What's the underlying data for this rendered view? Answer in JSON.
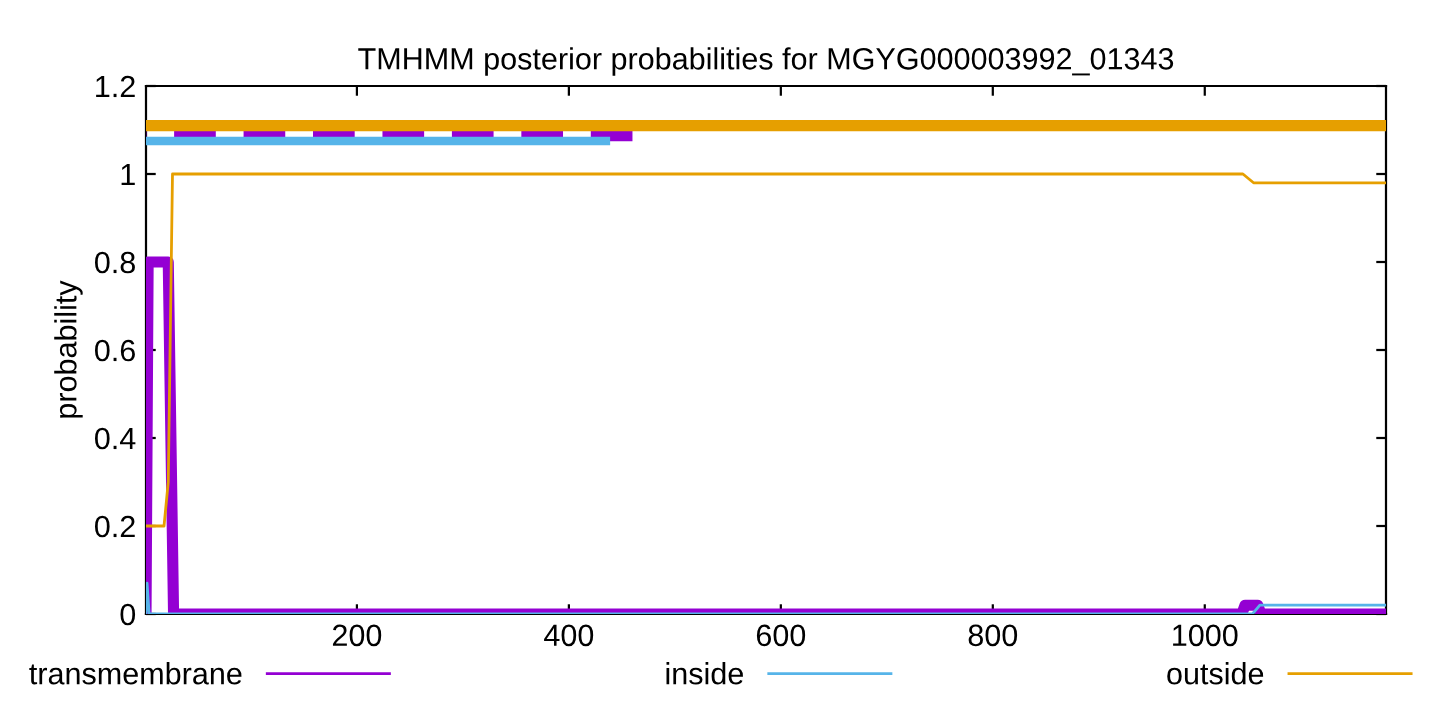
{
  "chart_data": {
    "type": "line",
    "title": "TMHMM posterior probabilities for MGYG000003992_01343",
    "ylabel": "probability",
    "series": [
      {
        "name": "transmembrane",
        "color": "#9400d3",
        "x": [
          1,
          3,
          22,
          27,
          1035,
          1038,
          1050,
          1053,
          1171
        ],
        "values": [
          0,
          0.8,
          0.8,
          0,
          0,
          0.02,
          0.02,
          0,
          0
        ]
      },
      {
        "name": "inside",
        "color": "#56b4e9",
        "x": [
          1,
          2,
          4,
          1045,
          1052,
          1171
        ],
        "values": [
          0,
          0.07,
          0,
          0,
          0.02,
          0.02
        ]
      },
      {
        "name": "outside",
        "color": "#e69f00",
        "x": [
          1,
          18,
          22,
          26,
          1036,
          1046,
          1171
        ],
        "values": [
          0.2,
          0.2,
          0.3,
          1,
          1,
          0.98,
          0.98
        ]
      },
      {
        "color": "#e69f00",
        "x": [
          1,
          1171
        ],
        "values": [
          1.11,
          1.11
        ]
      },
      {
        "color": "#9400d3",
        "x": [
          1,
          460
        ],
        "values": [
          1.09,
          1.09
        ],
        "line_style": "dashed"
      },
      {
        "color": "#56b4e9",
        "x": [
          1,
          435
        ],
        "values": [
          1.075,
          1.075
        ]
      }
    ],
    "xlim": [
      1,
      1171
    ],
    "ylim": [
      0,
      1.2
    ],
    "xticks": [
      200,
      400,
      600,
      800,
      1000
    ],
    "yticks": [
      0,
      0.2,
      0.4,
      0.6,
      0.8,
      1,
      1.2
    ],
    "legend": "bottom",
    "grid": false
  }
}
